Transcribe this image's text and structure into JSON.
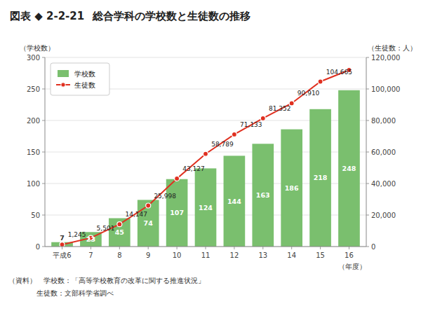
{
  "chart_data": {
    "type": "bar",
    "subtitle": "図表 ◆ 2-2-21",
    "title": "総合学科の学校数と生徒数の推移",
    "categories": [
      "平成6",
      "7",
      "8",
      "9",
      "10",
      "11",
      "12",
      "13",
      "14",
      "15",
      "16"
    ],
    "series": [
      {
        "name": "学校数",
        "type": "bar",
        "color": "#7abf6e",
        "data_labels": true,
        "values": [
          7,
          23,
          45,
          74,
          107,
          124,
          144,
          163,
          186,
          218,
          248
        ]
      },
      {
        "name": "生徒数",
        "type": "line",
        "axis": "y2",
        "color": "#e03020",
        "marker": "circle",
        "data_labels": true,
        "values": [
          1245,
          5501,
          14147,
          25998,
          43127,
          58789,
          71133,
          81352,
          90910,
          104665,
          112000
        ],
        "value_labels": [
          "1,245",
          "5,501",
          "14,147",
          "25,998",
          "43,127",
          "58,789",
          "71,133",
          "81,352",
          "90,910",
          "104,665",
          null
        ]
      }
    ],
    "xlabel": "（年度）",
    "ylabel": "（学校数）",
    "y2label": "（生徒数：人）",
    "ylim": [
      0,
      300
    ],
    "yticks": [
      0,
      50,
      100,
      150,
      200,
      250,
      300
    ],
    "y2lim": [
      0,
      120000
    ],
    "y2ticks": [
      0,
      {
        "value": 20000,
        "label": "20,000"
      },
      {
        "value": 40000,
        "label": "40,000"
      },
      {
        "value": 60000,
        "label": "60,000"
      },
      {
        "value": 80000,
        "label": "80,000"
      },
      {
        "value": 100000,
        "label": "100,000"
      },
      {
        "value": 120000,
        "label": "120,000"
      }
    ],
    "grid": true,
    "legend": "upper left",
    "annotations": [
      "（資料）　学校数：「高等学校教育の改革に関する推進状況」",
      "　　　　生徒数：文部科学省調べ"
    ]
  }
}
